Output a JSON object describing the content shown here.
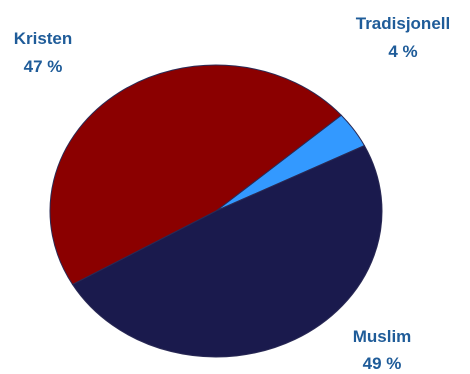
{
  "chart_data": {
    "type": "pie",
    "slices": [
      {
        "label": "Tradisjonell",
        "value": 4,
        "value_text": "4 %",
        "color": "#3399ff"
      },
      {
        "label": "Muslim",
        "value": 49,
        "value_text": "49 %",
        "color": "#1a1a4d"
      },
      {
        "label": "Kristen",
        "value": 47,
        "value_text": "47 %",
        "color": "#8b0000"
      }
    ],
    "label_color": "#1f5c99",
    "legend": "none"
  }
}
